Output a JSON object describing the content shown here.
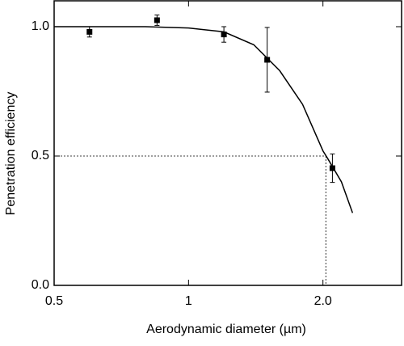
{
  "chart_data": {
    "type": "scatter",
    "x_label": "Aerodynamic diameter (µm)",
    "y_label": "Penetration efficiency",
    "x_scale": "log",
    "xlim": [
      0.5,
      3
    ],
    "ylim": [
      0,
      1.1
    ],
    "xticks": [
      0.5,
      1,
      {
        "value": 2,
        "label": "2.0"
      }
    ],
    "yticks": [
      {
        "value": 0,
        "label": "0.0"
      },
      0.5,
      {
        "value": 1,
        "label": "1.0"
      }
    ],
    "series": [
      {
        "kind": "points",
        "color": "#000000",
        "x": [
          0.6,
          0.85,
          1.2,
          1.5,
          2.1
        ],
        "values": [
          0.98,
          1.025,
          0.97,
          0.872,
          0.453
        ],
        "errors": [
          0.02,
          0.02,
          0.03,
          0.125,
          0.055
        ]
      },
      {
        "kind": "fit",
        "color": "#000000",
        "x": [
          0.5,
          0.8,
          1.0,
          1.2,
          1.4,
          1.6,
          1.8,
          2.0,
          2.05,
          2.2,
          2.33
        ],
        "values": [
          1.0,
          1.0,
          0.995,
          0.98,
          0.93,
          0.83,
          0.7,
          0.52,
          0.49,
          0.4,
          0.28
        ]
      }
    ],
    "reference": {
      "x": 2.03,
      "y": 0.5
    }
  }
}
